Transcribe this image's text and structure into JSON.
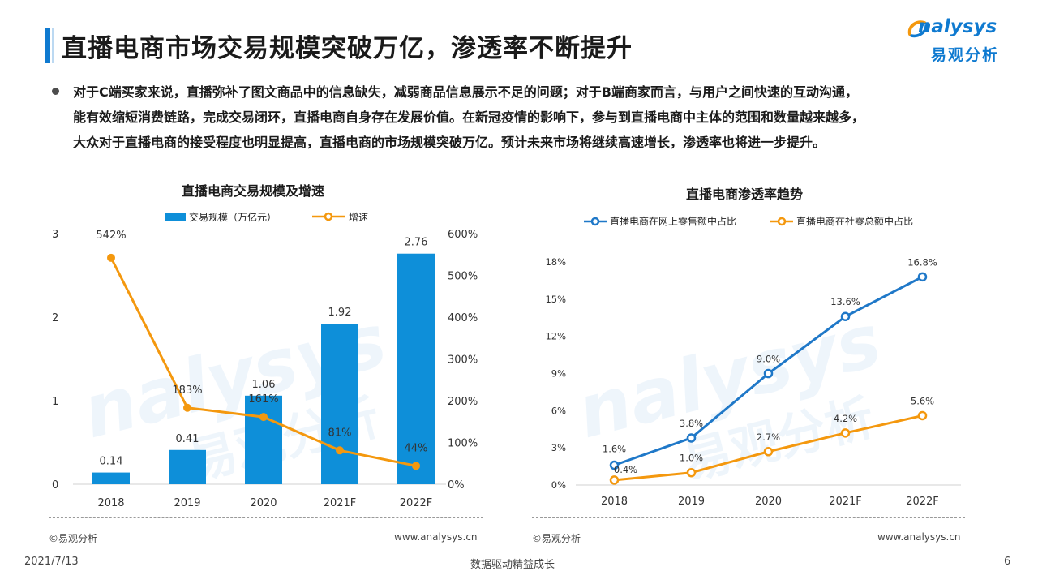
{
  "page_title": "直播电商市场交易规模突破万亿，渗透率不断提升",
  "logo": {
    "brand": "nalysys",
    "cn": "易观分析"
  },
  "paragraph": [
    "对于C端买家来说，直播弥补了图文商品中的信息缺失，减弱商品信息展示不足的问题；对于B端商家而言，与用户之间快速的互动沟通，",
    "能有效缩短消费链路，完成交易闭环，直播电商自身存在发展价值。在新冠疫情的影响下，参与到直播电商中主体的范围和数量越来越多，",
    "大众对于直播电商的接受程度也明显提高，直播电商的市场规模突破万亿。预计未来市场将继续高速增长，渗透率也将进一步提升。"
  ],
  "colors": {
    "blue": "#0e8fd9",
    "orange": "#f4980e",
    "line_blue": "#1f78c8",
    "accent": "#0f7ad0"
  },
  "chart_data": [
    {
      "type": "bar",
      "title": "直播电商交易规模及增速",
      "categories": [
        "2018",
        "2019",
        "2020",
        "2021F",
        "2022F"
      ],
      "series": [
        {
          "name": "交易规模（万亿元）",
          "type": "bar",
          "axis": "left",
          "values": [
            0.14,
            0.41,
            1.06,
            1.92,
            2.76
          ],
          "labels": [
            "0.14",
            "0.41",
            "1.06",
            "1.92",
            "2.76"
          ]
        },
        {
          "name": "增速",
          "type": "line",
          "axis": "right",
          "values": [
            542,
            183,
            161,
            81,
            44
          ],
          "labels": [
            "542%",
            "183%",
            "161%",
            "81%",
            "44%"
          ]
        }
      ],
      "ylim_left": [
        0,
        3
      ],
      "yticks_left": [
        "0",
        "1",
        "2",
        "3"
      ],
      "ylim_right": [
        0,
        600
      ],
      "yticks_right": [
        "0%",
        "100%",
        "200%",
        "300%",
        "400%",
        "500%",
        "600%"
      ],
      "source": "©易观分析",
      "site": "www.analysys.cn"
    },
    {
      "type": "line",
      "title": "直播电商渗透率趋势",
      "categories": [
        "2018",
        "2019",
        "2020",
        "2021F",
        "2022F"
      ],
      "series": [
        {
          "name": "直播电商在网上零售额中占比",
          "values": [
            1.6,
            3.8,
            9.0,
            13.6,
            16.8
          ],
          "labels": [
            "1.6%",
            "3.8%",
            "9.0%",
            "13.6%",
            "16.8%"
          ]
        },
        {
          "name": "直播电商在社零总额中占比",
          "values": [
            0.4,
            1.0,
            2.7,
            4.2,
            5.6
          ],
          "labels": [
            "0.4%",
            "1.0%",
            "2.7%",
            "4.2%",
            "5.6%"
          ]
        }
      ],
      "ylim": [
        0,
        18
      ],
      "yticks": [
        "0%",
        "3%",
        "6%",
        "9%",
        "12%",
        "15%",
        "18%"
      ],
      "source": "©易观分析",
      "site": "www.analysys.cn"
    }
  ],
  "footer": {
    "date": "2021/7/13",
    "slogan": "数据驱动精益成长",
    "page": "6"
  }
}
